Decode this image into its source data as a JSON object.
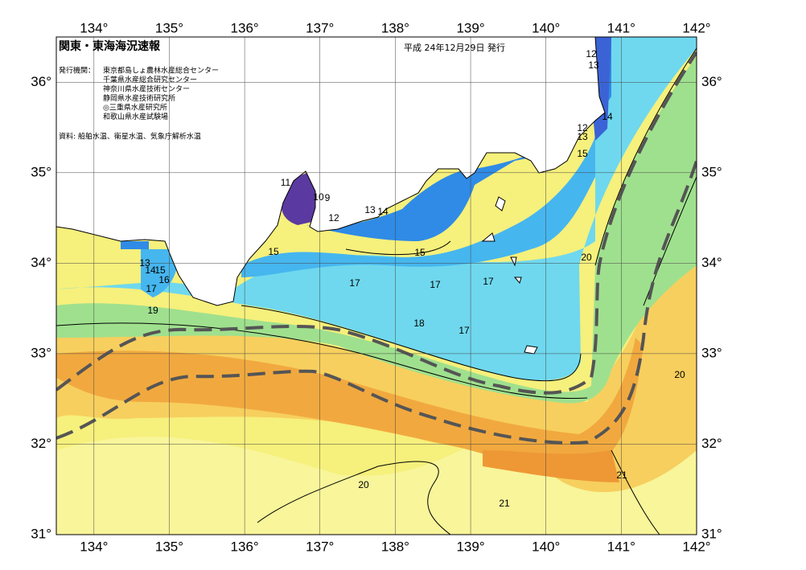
{
  "title": "関東・東海海況速報",
  "date": "平成 24年12月29日 発行",
  "issuer_label": "発行機関：",
  "issuers": [
    "東京都島しょ農林水産総合センター",
    "千葉県水産総合研究センター",
    "神奈川県水産技術センター",
    "静岡県水産技術研究所",
    "◎三重県水産研究所",
    "和歌山県水産試験場"
  ],
  "source": "資料: 船舶水温、衛星水温、気象庁解析水温",
  "lon_range": [
    133.5,
    142
  ],
  "lat_range": [
    31,
    36.5
  ],
  "lon_ticks": [
    {
      "value": 134,
      "label": "134°"
    },
    {
      "value": 135,
      "label": "135°"
    },
    {
      "value": 136,
      "label": "136°"
    },
    {
      "value": 137,
      "label": "137°"
    },
    {
      "value": 138,
      "label": "138°"
    },
    {
      "value": 139,
      "label": "139°"
    },
    {
      "value": 140,
      "label": "140°"
    },
    {
      "value": 141,
      "label": "141°"
    },
    {
      "value": 142,
      "label": "142°"
    }
  ],
  "lat_ticks": [
    {
      "value": 31,
      "label": "31°"
    },
    {
      "value": 32,
      "label": "32°"
    },
    {
      "value": 33,
      "label": "33°"
    },
    {
      "value": 34,
      "label": "34°"
    },
    {
      "value": 35,
      "label": "35°"
    },
    {
      "value": 36,
      "label": "36°"
    }
  ],
  "contour_labels": [
    12,
    13,
    14,
    12,
    13,
    15,
    11,
    10,
    9,
    12,
    13,
    14,
    15,
    15,
    20,
    13,
    14,
    15,
    16,
    17,
    17,
    17,
    17,
    19,
    18,
    17,
    20,
    21,
    20,
    21
  ]
}
